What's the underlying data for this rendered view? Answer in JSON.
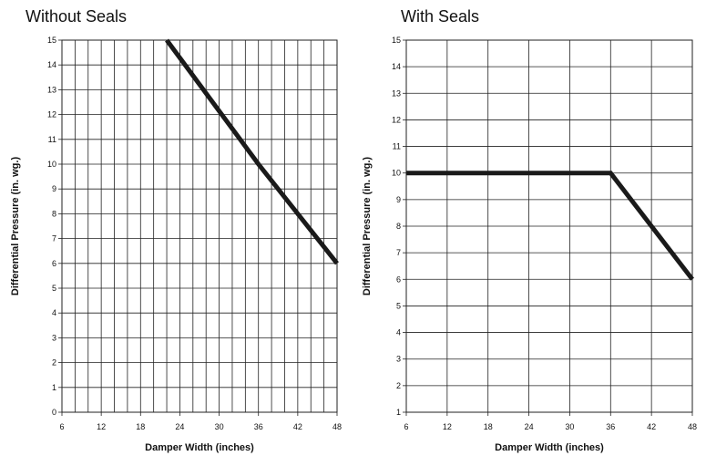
{
  "chart_data": [
    {
      "type": "line",
      "title": "Without Seals",
      "xlabel": "Damper Width (inches)",
      "ylabel": "Differential Pressure (in. wg.)",
      "xlim": [
        6,
        48
      ],
      "ylim": [
        0,
        15
      ],
      "x_ticks": [
        6,
        12,
        18,
        24,
        30,
        36,
        42,
        48
      ],
      "y_ticks": [
        0,
        1,
        2,
        3,
        4,
        5,
        6,
        7,
        8,
        9,
        10,
        11,
        12,
        13,
        14,
        15
      ],
      "x_tick_labels": [
        "6",
        "12",
        "18",
        "24",
        "30",
        "36",
        "42",
        "48"
      ],
      "y_tick_labels": [
        "0",
        "1",
        "2",
        "3",
        "4",
        "5",
        "6",
        "7",
        "8",
        "9",
        "10",
        "11",
        "12",
        "13",
        "14",
        "15"
      ],
      "x_gridlines": [
        6,
        8,
        10,
        12,
        14,
        16,
        18,
        20,
        22,
        24,
        26,
        28,
        30,
        32,
        34,
        36,
        38,
        40,
        42,
        44,
        46,
        48
      ],
      "grid": true,
      "series": [
        {
          "x": [
            22,
            36,
            48
          ],
          "y": [
            15,
            10,
            6
          ]
        }
      ]
    },
    {
      "type": "line",
      "title": "With Seals",
      "xlabel": "Damper Width (inches)",
      "ylabel": "Differential Pressure (in. wg.)",
      "xlim": [
        6,
        48
      ],
      "ylim": [
        1,
        15
      ],
      "x_ticks": [
        6,
        12,
        18,
        24,
        30,
        36,
        42,
        48
      ],
      "y_ticks": [
        1,
        2,
        3,
        4,
        5,
        6,
        7,
        8,
        9,
        10,
        11,
        12,
        13,
        14,
        15
      ],
      "x_tick_labels": [
        "6",
        "12",
        "18",
        "24",
        "30",
        "36",
        "42",
        "48"
      ],
      "y_tick_labels": [
        "1",
        "2",
        "3",
        "4",
        "5",
        "6",
        "7",
        "8",
        "9",
        "10",
        "11",
        "12",
        "13",
        "14",
        "15"
      ],
      "x_gridlines": [
        6,
        12,
        18,
        24,
        30,
        36,
        42,
        48
      ],
      "grid": true,
      "series": [
        {
          "x": [
            6,
            36,
            48
          ],
          "y": [
            10,
            10,
            6
          ]
        }
      ]
    }
  ]
}
